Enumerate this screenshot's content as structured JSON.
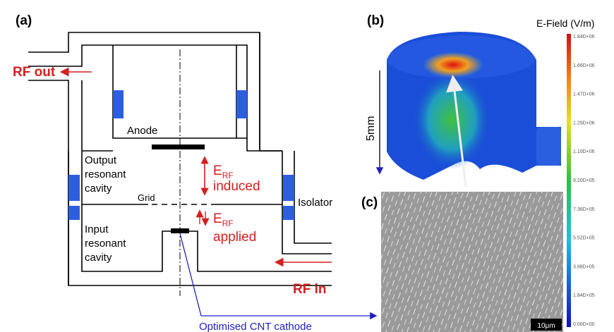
{
  "panels": {
    "a": "(a)",
    "b": "(b)",
    "c": "(c)"
  },
  "labels": {
    "rf_out": "RF out",
    "anode": "Anode",
    "output_cavity": [
      "Output",
      "resonant",
      "cavity"
    ],
    "grid": "Grid",
    "e_induced": {
      "symbol": "E",
      "subscript": "RF",
      "text": "induced"
    },
    "e_applied": {
      "symbol": "E",
      "subscript": "RF",
      "text": "applied"
    },
    "isolator": "Isolator",
    "input_cavity": [
      "Input",
      "resonant",
      "cavity"
    ],
    "rf_in": "RF in",
    "cathode": "Optimised CNT cathode",
    "scale_3d": "5mm",
    "scale_sem": "10μm"
  },
  "colorbar": {
    "title": "E-Field (V/m)",
    "labels": [
      "1.84D+06",
      "1.66D+06",
      "1.47D+06",
      "1.29D+06",
      "1.10D+06",
      "9.20D+05",
      "7.36D+05",
      "5.52D+05",
      "3.68D+05",
      "1.84D+05",
      "0.00D+00"
    ]
  }
}
